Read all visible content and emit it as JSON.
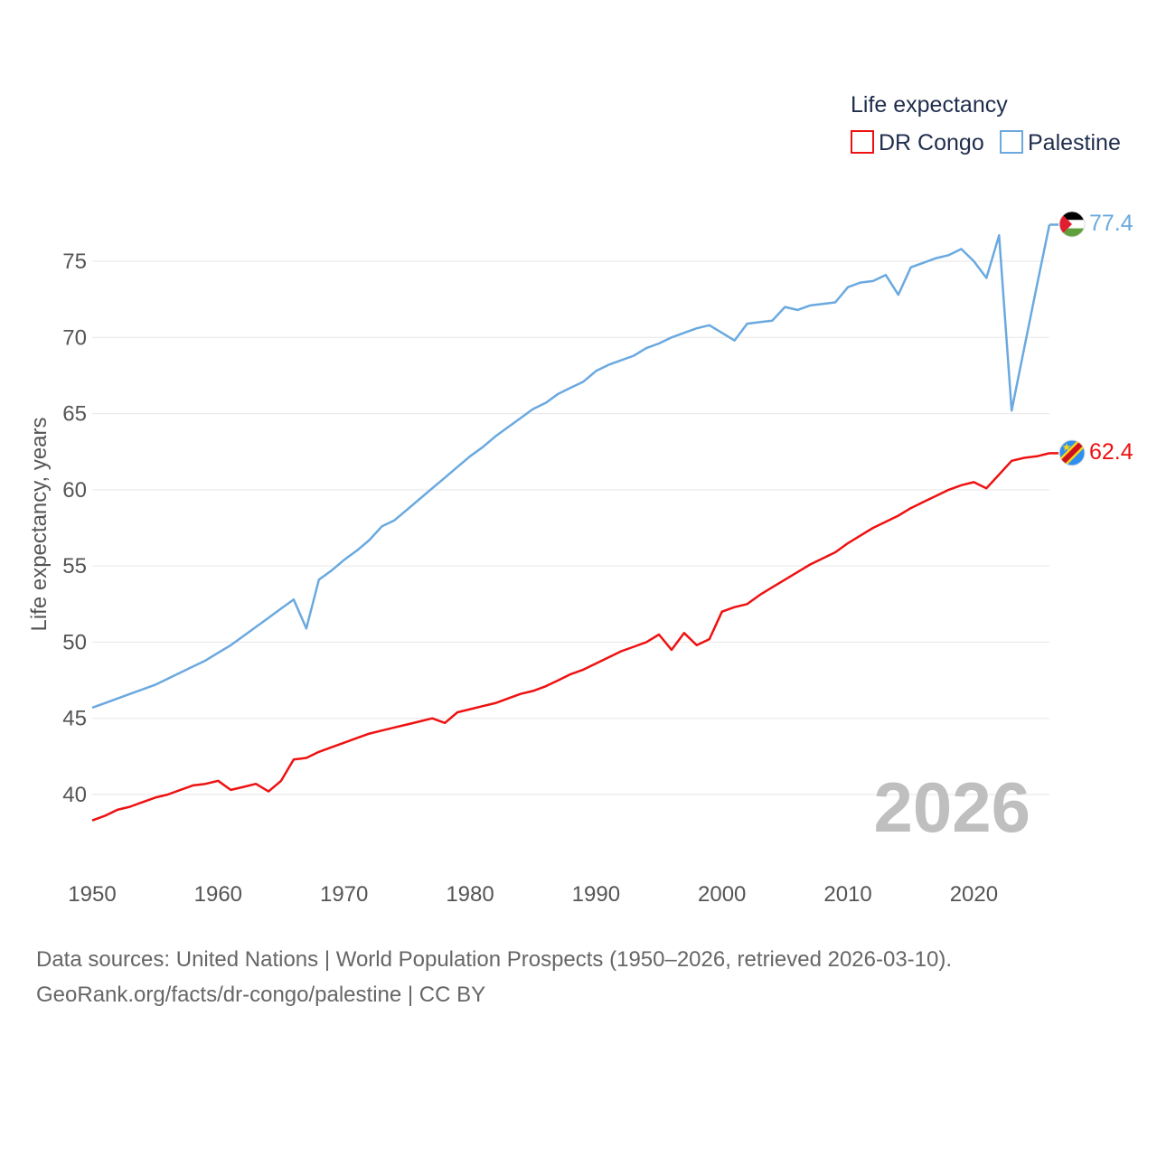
{
  "legend": {
    "title": "Life expectancy"
  },
  "year_label": "2026",
  "source": {
    "line1": "Data sources: United Nations | World Population Prospects (1950–2026, retrieved 2026-03-10).",
    "line2": "GeoRank.org/facts/dr-congo/palestine | CC BY"
  },
  "chart_data": {
    "type": "line",
    "title": "",
    "xlabel": "",
    "ylabel": "Life expectancy, years",
    "xlim": [
      1950,
      2026
    ],
    "ylim": [
      36.1,
      78.7
    ],
    "x_ticks": [
      1950,
      1960,
      1970,
      1980,
      1990,
      2000,
      2010,
      2020
    ],
    "y_ticks": [
      40,
      45,
      50,
      55,
      60,
      65,
      70,
      75
    ],
    "grid": true,
    "legend_position": "top-right",
    "x": [
      1950,
      1951,
      1952,
      1953,
      1954,
      1955,
      1956,
      1957,
      1958,
      1959,
      1960,
      1961,
      1962,
      1963,
      1964,
      1965,
      1966,
      1967,
      1968,
      1969,
      1970,
      1971,
      1972,
      1973,
      1974,
      1975,
      1976,
      1977,
      1978,
      1979,
      1980,
      1981,
      1982,
      1983,
      1984,
      1985,
      1986,
      1987,
      1988,
      1989,
      1990,
      1991,
      1992,
      1993,
      1994,
      1995,
      1996,
      1997,
      1998,
      1999,
      2000,
      2001,
      2002,
      2003,
      2004,
      2005,
      2006,
      2007,
      2008,
      2009,
      2010,
      2011,
      2012,
      2013,
      2014,
      2015,
      2016,
      2017,
      2018,
      2019,
      2020,
      2021,
      2022,
      2023,
      2024,
      2025,
      2026
    ],
    "series": [
      {
        "name": "DR Congo",
        "color": "#ee1111",
        "end_label": "62.4",
        "flag": "dr-congo-flag",
        "values": [
          38.3,
          38.6,
          39.0,
          39.2,
          39.5,
          39.8,
          40.0,
          40.3,
          40.6,
          40.7,
          40.9,
          40.3,
          40.5,
          40.7,
          40.2,
          40.9,
          42.3,
          42.4,
          42.8,
          43.1,
          43.4,
          43.7,
          44.0,
          44.2,
          44.4,
          44.6,
          44.8,
          45.0,
          44.7,
          45.4,
          45.6,
          45.8,
          46.0,
          46.3,
          46.6,
          46.8,
          47.1,
          47.5,
          47.9,
          48.2,
          48.6,
          49.0,
          49.4,
          49.7,
          50.0,
          50.5,
          49.5,
          50.6,
          49.8,
          50.2,
          52.0,
          52.3,
          52.5,
          53.1,
          53.6,
          54.1,
          54.6,
          55.1,
          55.5,
          55.9,
          56.5,
          57.0,
          57.5,
          57.9,
          58.3,
          58.8,
          59.2,
          59.6,
          60.0,
          60.3,
          60.5,
          60.1,
          61.0,
          61.9,
          62.1,
          62.2,
          62.4
        ]
      },
      {
        "name": "Palestine",
        "color": "#6aa9e0",
        "end_label": "77.4",
        "flag": "palestine-flag",
        "values": [
          45.7,
          46.0,
          46.3,
          46.6,
          46.9,
          47.2,
          47.6,
          48.0,
          48.4,
          48.8,
          49.3,
          49.8,
          50.4,
          51.0,
          51.6,
          52.2,
          52.8,
          50.9,
          54.1,
          54.7,
          55.4,
          56.0,
          56.7,
          57.6,
          58.0,
          58.7,
          59.4,
          60.1,
          60.8,
          61.5,
          62.2,
          62.8,
          63.5,
          64.1,
          64.7,
          65.3,
          65.7,
          66.3,
          66.7,
          67.1,
          67.8,
          68.2,
          68.5,
          68.8,
          69.3,
          69.6,
          70.0,
          70.3,
          70.6,
          70.8,
          70.3,
          69.8,
          70.9,
          71.0,
          71.1,
          72.0,
          71.8,
          72.1,
          72.2,
          72.3,
          73.3,
          73.6,
          73.7,
          74.1,
          72.8,
          74.6,
          74.9,
          75.2,
          75.4,
          75.8,
          75.0,
          73.9,
          76.7,
          65.2,
          69.3,
          73.4,
          77.4
        ]
      }
    ]
  }
}
